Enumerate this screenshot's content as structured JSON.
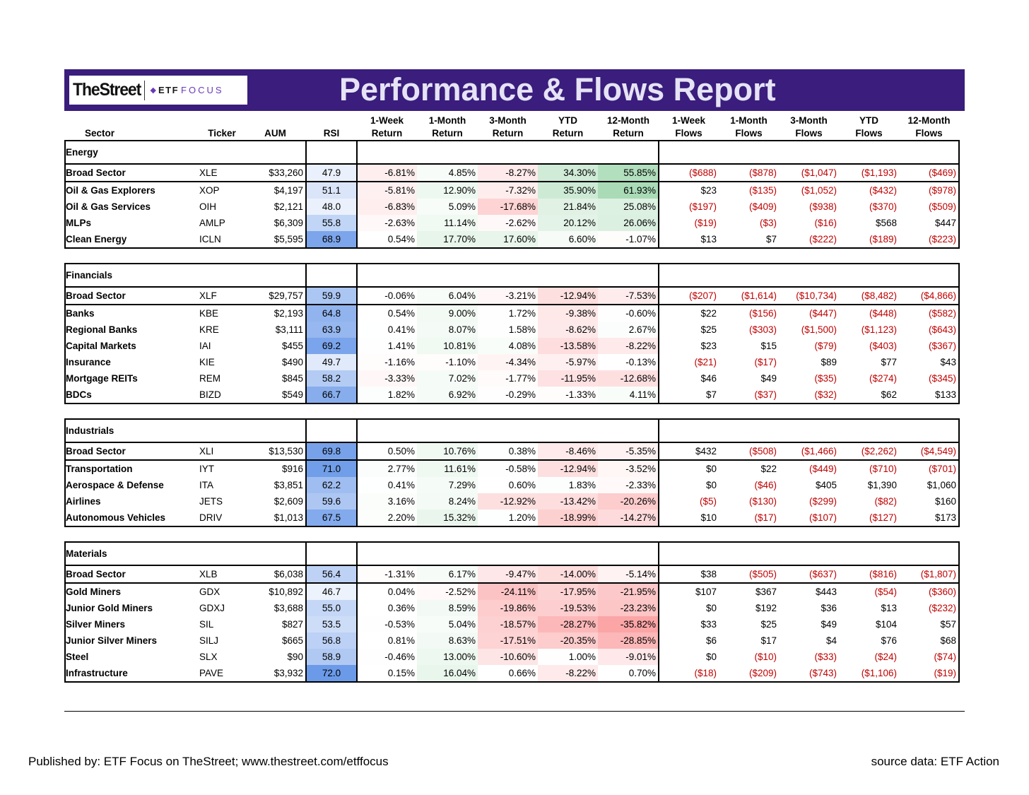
{
  "header": {
    "logo_brand": "TheStreet",
    "logo_etf": "ETF",
    "logo_focus": "FOCUS",
    "title": "Performance & Flows Report"
  },
  "columns": [
    [
      "",
      "Sector"
    ],
    [
      "",
      "Ticker"
    ],
    [
      "",
      "AUM"
    ],
    [
      "",
      "RSI"
    ],
    [
      "1-Week",
      "Return"
    ],
    [
      "1-Month",
      "Return"
    ],
    [
      "3-Month",
      "Return"
    ],
    [
      "YTD",
      "Return"
    ],
    [
      "12-Month",
      "Return"
    ],
    [
      "1-Week",
      "Flows"
    ],
    [
      "1-Month",
      "Flows"
    ],
    [
      "3-Month",
      "Flows"
    ],
    [
      "YTD",
      "Flows"
    ],
    [
      "12-Month",
      "Flows"
    ]
  ],
  "sections": [
    {
      "name": "Energy",
      "rows": [
        {
          "sector": "Broad Sector",
          "ticker": "XLE",
          "aum": "$33,260",
          "rsi": "47.9",
          "r1w": "-6.81%",
          "r1m": "4.85%",
          "r3m": "-8.27%",
          "rytd": "34.30%",
          "r12m": "55.85%",
          "f1w": "($688)",
          "f1m": "($878)",
          "f3m": "($1,047)",
          "fytd": "($1,193)",
          "f12m": "($469)"
        },
        {
          "sector": "Oil & Gas Explorers",
          "ticker": "XOP",
          "aum": "$4,197",
          "rsi": "51.1",
          "r1w": "-5.81%",
          "r1m": "12.90%",
          "r3m": "-7.32%",
          "rytd": "35.90%",
          "r12m": "61.93%",
          "f1w": "$23",
          "f1m": "($135)",
          "f3m": "($1,052)",
          "fytd": "($432)",
          "f12m": "($978)"
        },
        {
          "sector": "Oil & Gas Services",
          "ticker": "OIH",
          "aum": "$2,121",
          "rsi": "48.0",
          "r1w": "-6.83%",
          "r1m": "5.09%",
          "r3m": "-17.68%",
          "rytd": "21.84%",
          "r12m": "25.08%",
          "f1w": "($197)",
          "f1m": "($409)",
          "f3m": "($938)",
          "fytd": "($370)",
          "f12m": "($509)"
        },
        {
          "sector": "MLPs",
          "ticker": "AMLP",
          "aum": "$6,309",
          "rsi": "55.8",
          "r1w": "-2.63%",
          "r1m": "11.14%",
          "r3m": "-2.62%",
          "rytd": "20.12%",
          "r12m": "26.06%",
          "f1w": "($19)",
          "f1m": "($3)",
          "f3m": "($16)",
          "fytd": "$568",
          "f12m": "$447"
        },
        {
          "sector": "Clean Energy",
          "ticker": "ICLN",
          "aum": "$5,595",
          "rsi": "68.9",
          "r1w": "0.54%",
          "r1m": "17.70%",
          "r3m": "17.60%",
          "rytd": "6.60%",
          "r12m": "-1.07%",
          "f1w": "$13",
          "f1m": "$7",
          "f3m": "($222)",
          "fytd": "($189)",
          "f12m": "($223)"
        }
      ]
    },
    {
      "name": "Financials",
      "rows": [
        {
          "sector": "Broad Sector",
          "ticker": "XLF",
          "aum": "$29,757",
          "rsi": "59.9",
          "r1w": "-0.06%",
          "r1m": "6.04%",
          "r3m": "-3.21%",
          "rytd": "-12.94%",
          "r12m": "-7.53%",
          "f1w": "($207)",
          "f1m": "($1,614)",
          "f3m": "($10,734)",
          "fytd": "($8,482)",
          "f12m": "($4,866)"
        },
        {
          "sector": "Banks",
          "ticker": "KBE",
          "aum": "$2,193",
          "rsi": "64.8",
          "r1w": "0.54%",
          "r1m": "9.00%",
          "r3m": "1.72%",
          "rytd": "-9.38%",
          "r12m": "-0.60%",
          "f1w": "$22",
          "f1m": "($156)",
          "f3m": "($447)",
          "fytd": "($448)",
          "f12m": "($582)"
        },
        {
          "sector": "Regional Banks",
          "ticker": "KRE",
          "aum": "$3,111",
          "rsi": "63.9",
          "r1w": "0.41%",
          "r1m": "8.07%",
          "r3m": "1.58%",
          "rytd": "-8.62%",
          "r12m": "2.67%",
          "f1w": "$25",
          "f1m": "($303)",
          "f3m": "($1,500)",
          "fytd": "($1,123)",
          "f12m": "($643)"
        },
        {
          "sector": "Capital Markets",
          "ticker": "IAI",
          "aum": "$455",
          "rsi": "69.2",
          "r1w": "1.41%",
          "r1m": "10.81%",
          "r3m": "4.08%",
          "rytd": "-13.58%",
          "r12m": "-8.22%",
          "f1w": "$23",
          "f1m": "$15",
          "f3m": "($79)",
          "fytd": "($403)",
          "f12m": "($367)"
        },
        {
          "sector": "Insurance",
          "ticker": "KIE",
          "aum": "$490",
          "rsi": "49.7",
          "r1w": "-1.16%",
          "r1m": "-1.10%",
          "r3m": "-4.34%",
          "rytd": "-5.97%",
          "r12m": "-0.13%",
          "f1w": "($21)",
          "f1m": "($17)",
          "f3m": "$89",
          "fytd": "$77",
          "f12m": "$43"
        },
        {
          "sector": "Mortgage REITs",
          "ticker": "REM",
          "aum": "$845",
          "rsi": "58.2",
          "r1w": "-3.33%",
          "r1m": "7.02%",
          "r3m": "-1.77%",
          "rytd": "-11.95%",
          "r12m": "-12.68%",
          "f1w": "$46",
          "f1m": "$49",
          "f3m": "($35)",
          "fytd": "($274)",
          "f12m": "($345)"
        },
        {
          "sector": "BDCs",
          "ticker": "BIZD",
          "aum": "$549",
          "rsi": "66.7",
          "r1w": "1.82%",
          "r1m": "6.92%",
          "r3m": "-0.29%",
          "rytd": "-1.33%",
          "r12m": "4.11%",
          "f1w": "$7",
          "f1m": "($37)",
          "f3m": "($32)",
          "fytd": "$62",
          "f12m": "$133"
        }
      ]
    },
    {
      "name": "Industrials",
      "rows": [
        {
          "sector": "Broad Sector",
          "ticker": "XLI",
          "aum": "$13,530",
          "rsi": "69.8",
          "r1w": "0.50%",
          "r1m": "10.76%",
          "r3m": "0.38%",
          "rytd": "-8.46%",
          "r12m": "-5.35%",
          "f1w": "$432",
          "f1m": "($508)",
          "f3m": "($1,466)",
          "fytd": "($2,262)",
          "f12m": "($4,549)"
        },
        {
          "sector": "Transportation",
          "ticker": "IYT",
          "aum": "$916",
          "rsi": "71.0",
          "r1w": "2.77%",
          "r1m": "11.61%",
          "r3m": "-0.58%",
          "rytd": "-12.94%",
          "r12m": "-3.52%",
          "f1w": "$0",
          "f1m": "$22",
          "f3m": "($449)",
          "fytd": "($710)",
          "f12m": "($701)"
        },
        {
          "sector": "Aerospace & Defense",
          "ticker": "ITA",
          "aum": "$3,851",
          "rsi": "62.2",
          "r1w": "0.41%",
          "r1m": "7.29%",
          "r3m": "0.60%",
          "rytd": "1.83%",
          "r12m": "-2.33%",
          "f1w": "$0",
          "f1m": "($46)",
          "f3m": "$405",
          "fytd": "$1,390",
          "f12m": "$1,060"
        },
        {
          "sector": "Airlines",
          "ticker": "JETS",
          "aum": "$2,609",
          "rsi": "59.6",
          "r1w": "3.16%",
          "r1m": "8.24%",
          "r3m": "-12.92%",
          "rytd": "-13.42%",
          "r12m": "-20.26%",
          "f1w": "($5)",
          "f1m": "($130)",
          "f3m": "($299)",
          "fytd": "($82)",
          "f12m": "$160"
        },
        {
          "sector": "Autonomous Vehicles",
          "ticker": "DRIV",
          "aum": "$1,013",
          "rsi": "67.5",
          "r1w": "2.20%",
          "r1m": "15.32%",
          "r3m": "1.20%",
          "rytd": "-18.99%",
          "r12m": "-14.27%",
          "f1w": "$10",
          "f1m": "($17)",
          "f3m": "($107)",
          "fytd": "($127)",
          "f12m": "$173"
        }
      ]
    },
    {
      "name": "Materials",
      "rows": [
        {
          "sector": "Broad Sector",
          "ticker": "XLB",
          "aum": "$6,038",
          "rsi": "56.4",
          "r1w": "-1.31%",
          "r1m": "6.17%",
          "r3m": "-9.47%",
          "rytd": "-14.00%",
          "r12m": "-5.14%",
          "f1w": "$38",
          "f1m": "($505)",
          "f3m": "($637)",
          "fytd": "($816)",
          "f12m": "($1,807)"
        },
        {
          "sector": "Gold Miners",
          "ticker": "GDX",
          "aum": "$10,892",
          "rsi": "46.7",
          "r1w": "0.04%",
          "r1m": "-2.52%",
          "r3m": "-24.11%",
          "rytd": "-17.95%",
          "r12m": "-21.95%",
          "f1w": "$107",
          "f1m": "$367",
          "f3m": "$443",
          "fytd": "($54)",
          "f12m": "($360)"
        },
        {
          "sector": "Junior Gold Miners",
          "ticker": "GDXJ",
          "aum": "$3,688",
          "rsi": "55.0",
          "r1w": "0.36%",
          "r1m": "8.59%",
          "r3m": "-19.86%",
          "rytd": "-19.53%",
          "r12m": "-23.23%",
          "f1w": "$0",
          "f1m": "$192",
          "f3m": "$36",
          "fytd": "$13",
          "f12m": "($232)"
        },
        {
          "sector": "Silver Miners",
          "ticker": "SIL",
          "aum": "$827",
          "rsi": "53.5",
          "r1w": "-0.53%",
          "r1m": "5.04%",
          "r3m": "-18.57%",
          "rytd": "-28.27%",
          "r12m": "-35.82%",
          "f1w": "$33",
          "f1m": "$25",
          "f3m": "$49",
          "fytd": "$104",
          "f12m": "$57"
        },
        {
          "sector": "Junior Silver Miners",
          "ticker": "SILJ",
          "aum": "$665",
          "rsi": "56.8",
          "r1w": "0.81%",
          "r1m": "8.63%",
          "r3m": "-17.51%",
          "rytd": "-20.35%",
          "r12m": "-28.85%",
          "f1w": "$6",
          "f1m": "$17",
          "f3m": "$4",
          "fytd": "$76",
          "f12m": "$68"
        },
        {
          "sector": "Steel",
          "ticker": "SLX",
          "aum": "$90",
          "rsi": "58.9",
          "r1w": "-0.46%",
          "r1m": "13.00%",
          "r3m": "-10.60%",
          "rytd": "1.00%",
          "r12m": "-9.01%",
          "f1w": "$0",
          "f1m": "($10)",
          "f3m": "($33)",
          "fytd": "($24)",
          "f12m": "($74)"
        },
        {
          "sector": "Infrastructure",
          "ticker": "PAVE",
          "aum": "$3,932",
          "rsi": "72.0",
          "r1w": "0.15%",
          "r1m": "16.04%",
          "r3m": "0.66%",
          "rytd": "-8.22%",
          "r12m": "0.70%",
          "f1w": "($18)",
          "f1m": "($209)",
          "f3m": "($743)",
          "fytd": "($1,106)",
          "f12m": "($19)"
        }
      ]
    }
  ],
  "footer": {
    "published": "Published by: ETF Focus on TheStreet; www.thestreet.com/etffocus",
    "source": "source data: ETF Action"
  },
  "colors": {
    "banner": "#3a1d7c",
    "title": "#e5e3f5",
    "negative_text": "#c00000",
    "rsi_scale": "#5b8fe6",
    "positive_scale": "#63be7b",
    "negative_scale": "#f8696b"
  }
}
